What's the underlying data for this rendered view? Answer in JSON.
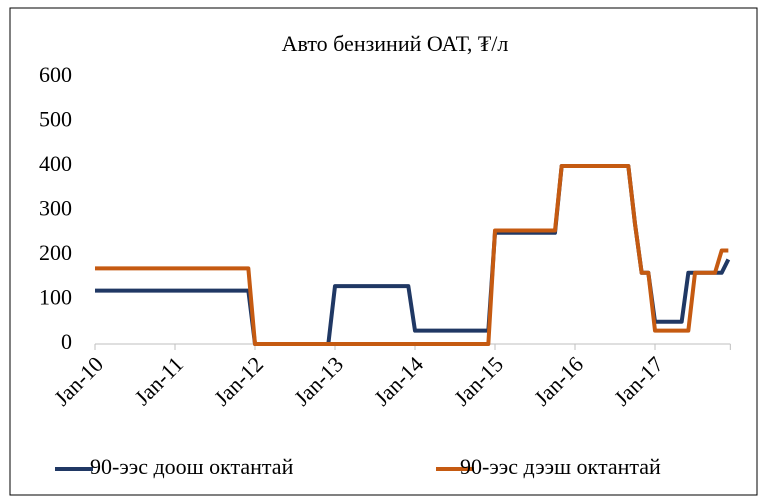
{
  "chart_data": {
    "type": "line",
    "title": "Авто бензиний ОАТ, ₮/л",
    "categories": [
      "Jan-10",
      null,
      null,
      null,
      null,
      null,
      null,
      null,
      null,
      null,
      null,
      null,
      "Jan-11",
      null,
      null,
      null,
      null,
      null,
      null,
      null,
      null,
      null,
      null,
      null,
      "Jan-12",
      null,
      null,
      null,
      null,
      null,
      null,
      null,
      null,
      null,
      null,
      null,
      "Jan-13",
      null,
      null,
      null,
      null,
      null,
      null,
      null,
      null,
      null,
      null,
      null,
      "Jan-14",
      null,
      null,
      null,
      null,
      null,
      null,
      null,
      null,
      null,
      null,
      null,
      "Jan-15",
      null,
      null,
      null,
      null,
      null,
      null,
      null,
      null,
      null,
      null,
      null,
      "Jan-16",
      null,
      null,
      null,
      null,
      null,
      null,
      null,
      null,
      null,
      null,
      null,
      "Jan-17",
      null,
      null,
      null,
      null,
      null,
      null,
      null,
      null,
      null,
      null,
      null
    ],
    "series": [
      {
        "name": "90-ээс доош октантай",
        "color": "#203864",
        "values": [
          120,
          120,
          120,
          120,
          120,
          120,
          120,
          120,
          120,
          120,
          120,
          120,
          120,
          120,
          120,
          120,
          120,
          120,
          120,
          120,
          120,
          120,
          120,
          120,
          0,
          0,
          0,
          0,
          0,
          0,
          0,
          0,
          0,
          0,
          0,
          0,
          130,
          130,
          130,
          130,
          130,
          130,
          130,
          130,
          130,
          130,
          130,
          130,
          30,
          30,
          30,
          30,
          30,
          30,
          30,
          30,
          30,
          30,
          30,
          30,
          250,
          250,
          250,
          250,
          250,
          250,
          250,
          250,
          250,
          250,
          400,
          400,
          400,
          400,
          400,
          400,
          400,
          400,
          400,
          400,
          400,
          270,
          160,
          160,
          50,
          50,
          50,
          50,
          50,
          160,
          160,
          160,
          160,
          160,
          160,
          190
        ]
      },
      {
        "name": "90-ээс дээш октантай",
        "color": "#c55a11",
        "values": [
          170,
          170,
          170,
          170,
          170,
          170,
          170,
          170,
          170,
          170,
          170,
          170,
          170,
          170,
          170,
          170,
          170,
          170,
          170,
          170,
          170,
          170,
          170,
          170,
          0,
          0,
          0,
          0,
          0,
          0,
          0,
          0,
          0,
          0,
          0,
          0,
          0,
          0,
          0,
          0,
          0,
          0,
          0,
          0,
          0,
          0,
          0,
          0,
          0,
          0,
          0,
          0,
          0,
          0,
          0,
          0,
          0,
          0,
          0,
          0,
          255,
          255,
          255,
          255,
          255,
          255,
          255,
          255,
          255,
          255,
          400,
          400,
          400,
          400,
          400,
          400,
          400,
          400,
          400,
          400,
          400,
          270,
          160,
          160,
          30,
          30,
          30,
          30,
          30,
          30,
          160,
          160,
          160,
          160,
          210,
          210
        ]
      }
    ],
    "ylim": [
      0,
      600
    ],
    "yticks": [
      0,
      100,
      200,
      300,
      400,
      500,
      600
    ],
    "grid": false
  }
}
